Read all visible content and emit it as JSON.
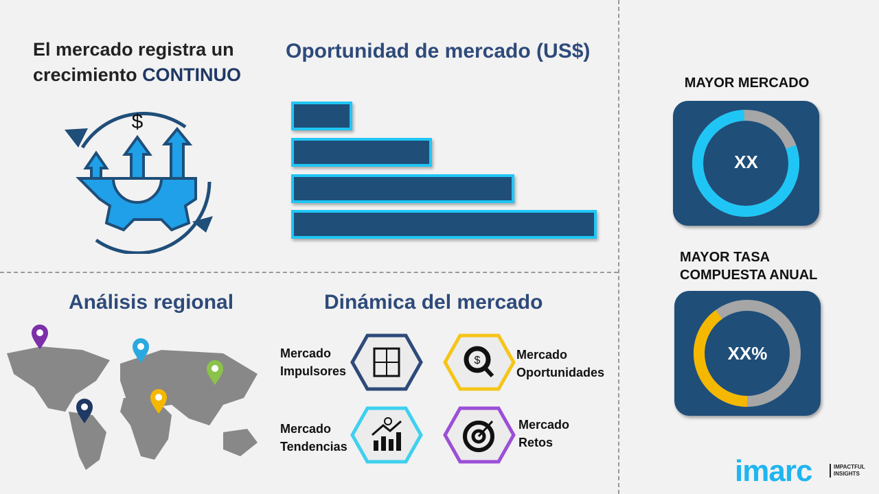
{
  "growth": {
    "line1": "El mercado registra un",
    "line2": "crecimiento ",
    "highlight": "CONTINUO",
    "icon": "growth-gear-icon"
  },
  "opportunity": {
    "title": "Oportunidad de mercado (US$)",
    "bars": [
      0.2,
      0.46,
      0.73,
      1.0
    ],
    "bar_color": "#1f4e79",
    "bar_border": "#1fc6f5"
  },
  "regional": {
    "title": "Análisis regional",
    "pins": [
      "#7b2fa8",
      "#2aa9e0",
      "#8bc34a",
      "#f5b800",
      "#1f3864"
    ]
  },
  "dynamics": {
    "title": "Dinámica del mercado",
    "items": [
      {
        "l1": "Mercado",
        "l2": "Impulsores",
        "color": "#2e4a7a",
        "icon": "puzzle-icon"
      },
      {
        "l1": "Mercado",
        "l2": "Oportunidades",
        "color": "#f5c518",
        "icon": "magnifier-dollar-icon"
      },
      {
        "l1": "Mercado",
        "l2": "Tendencias",
        "color": "#3fd0f0",
        "icon": "chart-trend-icon"
      },
      {
        "l1": "Mercado",
        "l2": "Retos",
        "color": "#9b4fd6",
        "icon": "target-icon"
      }
    ]
  },
  "largest": {
    "title": "MAYOR MERCADO",
    "value": "XX",
    "fraction": 0.8,
    "color": "#1fc6f5"
  },
  "cagr": {
    "title1": "MAYOR TASA",
    "title2": "COMPUESTA ANUAL",
    "value": "XX%",
    "fraction": 0.4,
    "color": "#f5b800"
  },
  "logo": {
    "name": "imarc",
    "tag1": "IMPACTFUL",
    "tag2": "INSIGHTS",
    "color": "#1fb5f0"
  }
}
